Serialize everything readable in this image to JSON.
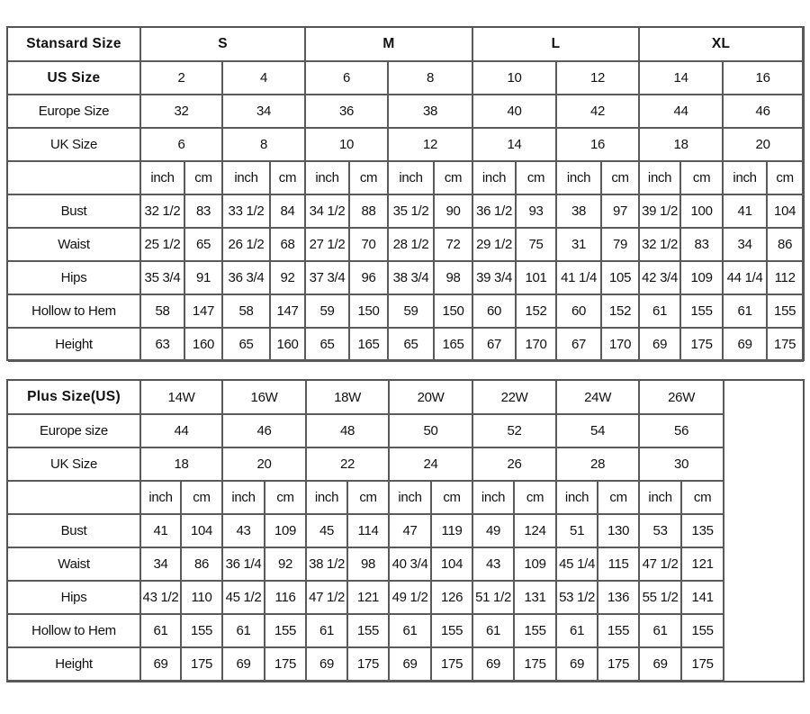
{
  "standard_table": {
    "rows": [
      {
        "label": "Stansard Size",
        "bold_label": true,
        "bold_cells": true,
        "span": 4,
        "cells": [
          "S",
          "M",
          "L",
          "XL"
        ]
      },
      {
        "label": "US Size",
        "bold_label": true,
        "span": 2,
        "cells": [
          "2",
          "4",
          "6",
          "8",
          "10",
          "12",
          "14",
          "16"
        ]
      },
      {
        "label": "Europe Size",
        "span": 2,
        "cells": [
          "32",
          "34",
          "36",
          "38",
          "40",
          "42",
          "44",
          "46"
        ]
      },
      {
        "label": "UK Size",
        "span": 2,
        "cells": [
          "6",
          "8",
          "10",
          "12",
          "14",
          "16",
          "18",
          "20"
        ]
      },
      {
        "label": "",
        "span": 1,
        "cells": [
          "inch",
          "cm",
          "inch",
          "cm",
          "inch",
          "cm",
          "inch",
          "cm",
          "inch",
          "cm",
          "inch",
          "cm",
          "inch",
          "cm",
          "inch",
          "cm"
        ]
      },
      {
        "label": "Bust",
        "span": 1,
        "cells": [
          "32 1/2",
          "83",
          "33 1/2",
          "84",
          "34 1/2",
          "88",
          "35 1/2",
          "90",
          "36 1/2",
          "93",
          "38",
          "97",
          "39 1/2",
          "100",
          "41",
          "104"
        ]
      },
      {
        "label": "Waist",
        "span": 1,
        "cells": [
          "25 1/2",
          "65",
          "26 1/2",
          "68",
          "27 1/2",
          "70",
          "28 1/2",
          "72",
          "29 1/2",
          "75",
          "31",
          "79",
          "32 1/2",
          "83",
          "34",
          "86"
        ]
      },
      {
        "label": "Hips",
        "span": 1,
        "cells": [
          "35 3/4",
          "91",
          "36 3/4",
          "92",
          "37 3/4",
          "96",
          "38 3/4",
          "98",
          "39 3/4",
          "101",
          "41 1/4",
          "105",
          "42 3/4",
          "109",
          "44 1/4",
          "112"
        ]
      },
      {
        "label": "Hollow to Hem",
        "span": 1,
        "cells": [
          "58",
          "147",
          "58",
          "147",
          "59",
          "150",
          "59",
          "150",
          "60",
          "152",
          "60",
          "152",
          "61",
          "155",
          "61",
          "155"
        ]
      },
      {
        "label": "Height",
        "span": 1,
        "cells": [
          "63",
          "160",
          "65",
          "160",
          "65",
          "165",
          "65",
          "165",
          "67",
          "170",
          "67",
          "170",
          "69",
          "175",
          "69",
          "175"
        ]
      }
    ]
  },
  "plus_table": {
    "rows": [
      {
        "label": "Plus Size(US)",
        "bold_label": true,
        "span": 2,
        "cells": [
          "14W",
          "16W",
          "18W",
          "20W",
          "22W",
          "24W",
          "26W"
        ]
      },
      {
        "label": "Europe size",
        "span": 2,
        "cells": [
          "44",
          "46",
          "48",
          "50",
          "52",
          "54",
          "56"
        ]
      },
      {
        "label": "UK Size",
        "span": 2,
        "cells": [
          "18",
          "20",
          "22",
          "24",
          "26",
          "28",
          "30"
        ]
      },
      {
        "label": "",
        "span": 1,
        "cells": [
          "inch",
          "cm",
          "inch",
          "cm",
          "inch",
          "cm",
          "inch",
          "cm",
          "inch",
          "cm",
          "inch",
          "cm",
          "inch",
          "cm"
        ]
      },
      {
        "label": "Bust",
        "span": 1,
        "cells": [
          "41",
          "104",
          "43",
          "109",
          "45",
          "114",
          "47",
          "119",
          "49",
          "124",
          "51",
          "130",
          "53",
          "135"
        ]
      },
      {
        "label": "Waist",
        "span": 1,
        "cells": [
          "34",
          "86",
          "36 1/4",
          "92",
          "38 1/2",
          "98",
          "40 3/4",
          "104",
          "43",
          "109",
          "45 1/4",
          "115",
          "47 1/2",
          "121"
        ]
      },
      {
        "label": "Hips",
        "span": 1,
        "cells": [
          "43 1/2",
          "110",
          "45 1/2",
          "116",
          "47 1/2",
          "121",
          "49 1/2",
          "126",
          "51 1/2",
          "131",
          "53 1/2",
          "136",
          "55 1/2",
          "141"
        ]
      },
      {
        "label": "Hollow to Hem",
        "span": 1,
        "cells": [
          "61",
          "155",
          "61",
          "155",
          "61",
          "155",
          "61",
          "155",
          "61",
          "155",
          "61",
          "155",
          "61",
          "155"
        ]
      },
      {
        "label": "Height",
        "span": 1,
        "cells": [
          "69",
          "175",
          "69",
          "175",
          "69",
          "175",
          "69",
          "175",
          "69",
          "175",
          "69",
          "175",
          "69",
          "175"
        ]
      }
    ]
  }
}
